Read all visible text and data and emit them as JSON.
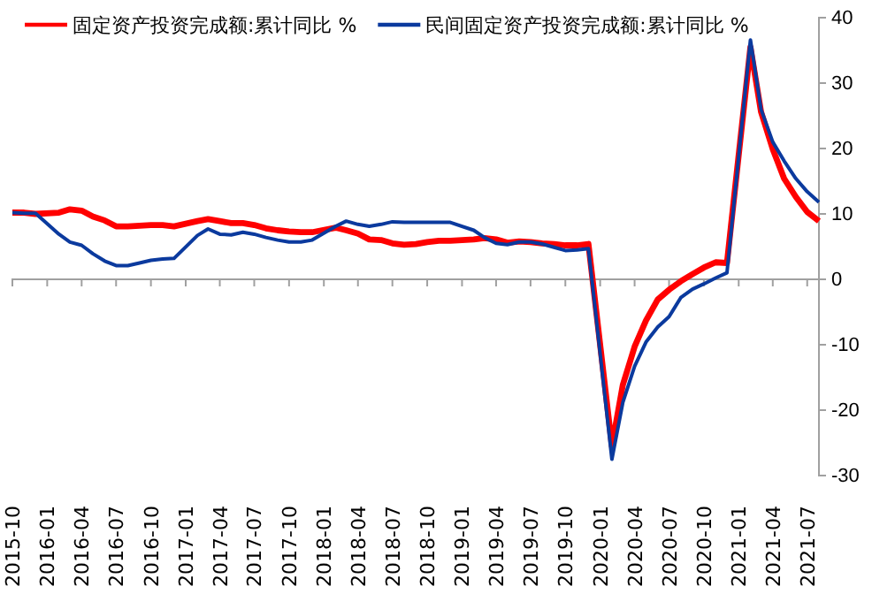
{
  "chart_data": {
    "type": "line",
    "legend": "top",
    "grid": false,
    "marker": "none",
    "line_style": "solid",
    "xlim": [
      "2015-10",
      "2021-08"
    ],
    "xticks": [
      "2015-10",
      "2016-01",
      "2016-04",
      "2016-07",
      "2016-10",
      "2017-01",
      "2017-04",
      "2017-07",
      "2017-10",
      "2018-01",
      "2018-04",
      "2018-07",
      "2018-10",
      "2019-01",
      "2019-04",
      "2019-07",
      "2019-10",
      "2020-01",
      "2020-04",
      "2020-07",
      "2020-10",
      "2021-01",
      "2021-04",
      "2021-07"
    ],
    "ylim": [
      -30,
      40
    ],
    "yticks": [
      -30,
      -20,
      -10,
      0,
      10,
      20,
      30,
      40
    ],
    "x": [
      "2015-10",
      "2015-11",
      "2015-12",
      "2016-02",
      "2016-03",
      "2016-04",
      "2016-05",
      "2016-06",
      "2016-07",
      "2016-08",
      "2016-09",
      "2016-10",
      "2016-11",
      "2016-12",
      "2017-02",
      "2017-03",
      "2017-04",
      "2017-05",
      "2017-06",
      "2017-07",
      "2017-08",
      "2017-09",
      "2017-10",
      "2017-11",
      "2017-12",
      "2018-02",
      "2018-03",
      "2018-04",
      "2018-05",
      "2018-06",
      "2018-07",
      "2018-08",
      "2018-09",
      "2018-10",
      "2018-11",
      "2018-12",
      "2019-02",
      "2019-03",
      "2019-04",
      "2019-05",
      "2019-06",
      "2019-07",
      "2019-08",
      "2019-09",
      "2019-10",
      "2019-11",
      "2019-12",
      "2020-02",
      "2020-03",
      "2020-04",
      "2020-05",
      "2020-06",
      "2020-07",
      "2020-08",
      "2020-09",
      "2020-10",
      "2020-11",
      "2020-12",
      "2021-02",
      "2021-03",
      "2021-04",
      "2021-05",
      "2021-06",
      "2021-07",
      "2021-08"
    ],
    "series": [
      {
        "name": "固定资产投资完成额:累计同比 %",
        "color": "#ff0000",
        "values": [
          10.2,
          10.2,
          10.0,
          10.2,
          10.7,
          10.5,
          9.6,
          9.0,
          8.1,
          8.1,
          8.2,
          8.3,
          8.3,
          8.1,
          8.9,
          9.2,
          8.9,
          8.6,
          8.6,
          8.3,
          7.8,
          7.5,
          7.3,
          7.2,
          7.2,
          7.9,
          7.5,
          7.0,
          6.1,
          6.0,
          5.5,
          5.3,
          5.4,
          5.7,
          5.9,
          5.9,
          6.1,
          6.3,
          6.1,
          5.6,
          5.8,
          5.7,
          5.5,
          5.4,
          5.2,
          5.2,
          5.4,
          -25.5,
          -16.1,
          -10.3,
          -6.3,
          -3.1,
          -1.6,
          -0.3,
          0.8,
          1.8,
          2.6,
          2.5,
          35.5,
          25.6,
          19.9,
          15.4,
          12.6,
          10.3,
          8.9
        ]
      },
      {
        "name": "民间固定资产投资完成额:累计同比 %",
        "color": "#0b3a9e",
        "values": [
          10.2,
          10.1,
          10.1,
          6.9,
          5.7,
          5.2,
          3.9,
          2.8,
          2.1,
          2.1,
          2.5,
          2.9,
          3.1,
          3.2,
          6.7,
          7.7,
          6.9,
          6.8,
          7.2,
          6.9,
          6.4,
          6.0,
          5.7,
          5.7,
          6.0,
          8.1,
          8.9,
          8.4,
          8.1,
          8.4,
          8.8,
          8.7,
          8.7,
          8.7,
          8.7,
          8.7,
          7.5,
          6.4,
          5.5,
          5.3,
          5.7,
          5.7,
          5.4,
          4.9,
          4.4,
          4.5,
          4.7,
          -27.5,
          -18.8,
          -13.3,
          -9.6,
          -7.3,
          -5.7,
          -2.8,
          -1.5,
          -0.7,
          0.2,
          1.0,
          36.6,
          26.0,
          21.0,
          18.1,
          15.4,
          13.4,
          11.8
        ]
      }
    ]
  }
}
